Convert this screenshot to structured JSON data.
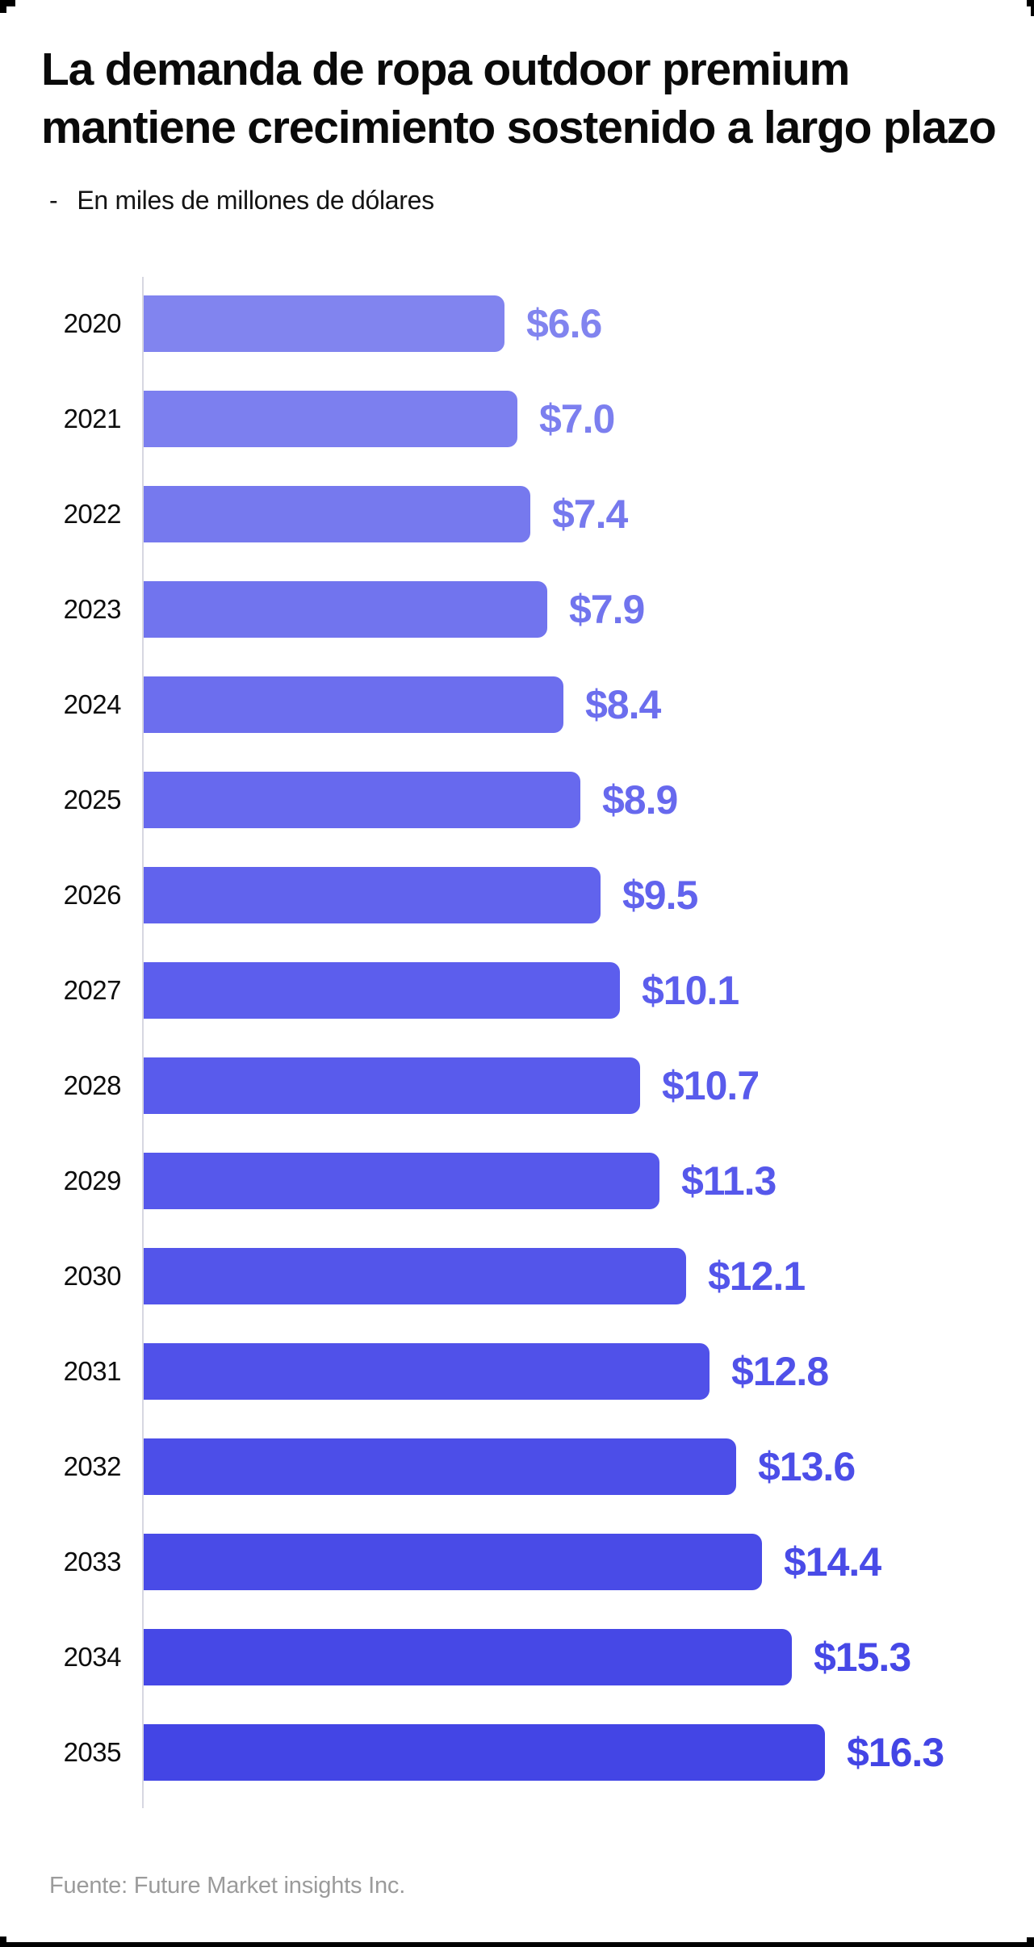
{
  "chart_data": {
    "type": "bar",
    "orientation": "horizontal",
    "title": "La demanda de ropa outdoor premium mantiene crecimiento sostenido a largo plazo",
    "title_lines": [
      "La demanda de ropa outdoor premium",
      "mantiene crecimiento sostenido a largo plazo"
    ],
    "subtitle_dash": "-",
    "subtitle": "En miles de millones de dólares",
    "categories": [
      "2020",
      "2021",
      "2022",
      "2023",
      "2024",
      "2025",
      "2026",
      "2027",
      "2028",
      "2029",
      "2030",
      "2031",
      "2032",
      "2033",
      "2034",
      "2035"
    ],
    "values": [
      6.6,
      7.0,
      7.4,
      7.9,
      8.4,
      8.9,
      9.5,
      10.1,
      10.7,
      11.3,
      12.1,
      12.8,
      13.6,
      14.4,
      15.3,
      16.3
    ],
    "value_labels": [
      "$6.6",
      "$7.0",
      "$7.4",
      "$7.9",
      "$8.4",
      "$8.9",
      "$9.5",
      "$10.1",
      "$10.7",
      "$11.3",
      "$12.1",
      "$12.8",
      "$13.6",
      "$14.4",
      "$15.3",
      "$16.3"
    ],
    "bar_colors": [
      "#8184EF",
      "#7C7FEF",
      "#7679EE",
      "#7174EE",
      "#6C6EEE",
      "#6769EE",
      "#6163ED",
      "#5C5EED",
      "#595BEC",
      "#5658EB",
      "#5355EA",
      "#5051E9",
      "#4C4EE8",
      "#494BE7",
      "#4648E6",
      "#4345E5"
    ],
    "xlabel": "",
    "ylabel": "",
    "xlim": [
      0,
      16.3
    ],
    "grid": false,
    "legend": false,
    "axis_color": "#d7d7e1"
  },
  "footer": {
    "source": "Fuente: Future Market insights Inc."
  },
  "colors": {
    "title_text": "#0a0a0a",
    "year_text": "#0d0d0d",
    "source_text": "#9b9b9b",
    "edge_marks": "#000000",
    "background": "#ffffff"
  }
}
